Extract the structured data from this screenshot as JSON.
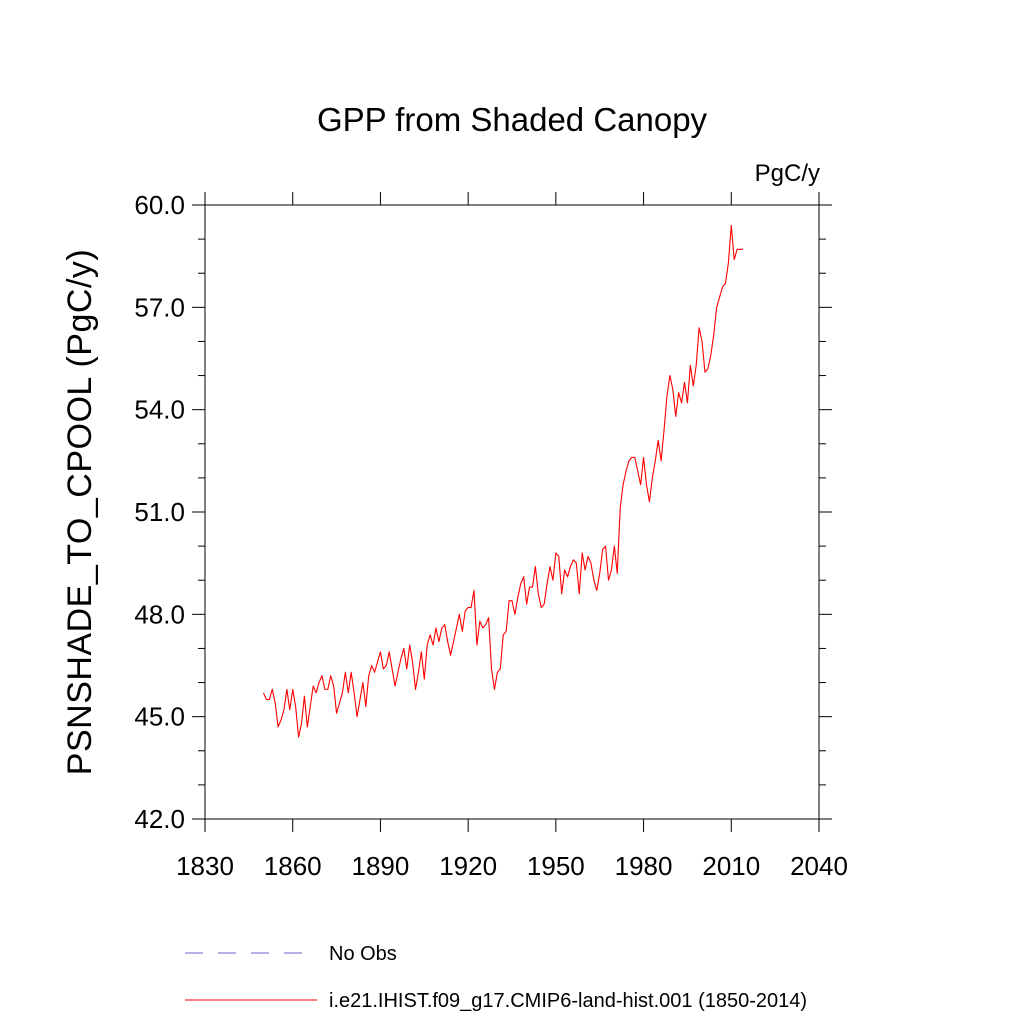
{
  "chart_data": {
    "type": "line",
    "title": "GPP from Shaded Canopy",
    "units_label": "PgC/y",
    "ylabel": "PSNSHADE_TO_CPOOL  (PgC/y)",
    "xlabel": "",
    "xlim": [
      1830,
      2040
    ],
    "ylim": [
      42.0,
      60.0
    ],
    "x_ticks": [
      1830,
      1860,
      1890,
      1920,
      1950,
      1980,
      2010,
      2040
    ],
    "x_tick_labels": [
      "1830",
      "1860",
      "1890",
      "1920",
      "1950",
      "1980",
      "2010",
      "2040"
    ],
    "y_ticks": [
      42,
      45,
      48,
      51,
      54,
      57,
      60
    ],
    "y_tick_labels": [
      "42.0",
      "45.0",
      "48.0",
      "51.0",
      "54.0",
      "57.0",
      "60.0"
    ],
    "grid": false,
    "legend_position": "bottom",
    "series": [
      {
        "name": "No Obs",
        "color": "#6666cc",
        "dash": "dashed",
        "x": [],
        "values": []
      },
      {
        "name": "i.e21.IHIST.f09_g17.CMIP6-land-hist.001 (1850-2014)",
        "color": "#ff0000",
        "dash": "solid",
        "x": [
          1850,
          1851,
          1852,
          1853,
          1854,
          1855,
          1856,
          1857,
          1858,
          1859,
          1860,
          1861,
          1862,
          1863,
          1864,
          1865,
          1866,
          1867,
          1868,
          1869,
          1870,
          1871,
          1872,
          1873,
          1874,
          1875,
          1876,
          1877,
          1878,
          1879,
          1880,
          1881,
          1882,
          1883,
          1884,
          1885,
          1886,
          1887,
          1888,
          1889,
          1890,
          1891,
          1892,
          1893,
          1894,
          1895,
          1896,
          1897,
          1898,
          1899,
          1900,
          1901,
          1902,
          1903,
          1904,
          1905,
          1906,
          1907,
          1908,
          1909,
          1910,
          1911,
          1912,
          1913,
          1914,
          1915,
          1916,
          1917,
          1918,
          1919,
          1920,
          1921,
          1922,
          1923,
          1924,
          1925,
          1926,
          1927,
          1928,
          1929,
          1930,
          1931,
          1932,
          1933,
          1934,
          1935,
          1936,
          1937,
          1938,
          1939,
          1940,
          1941,
          1942,
          1943,
          1944,
          1945,
          1946,
          1947,
          1948,
          1949,
          1950,
          1951,
          1952,
          1953,
          1954,
          1955,
          1956,
          1957,
          1958,
          1959,
          1960,
          1961,
          1962,
          1963,
          1964,
          1965,
          1966,
          1967,
          1968,
          1969,
          1970,
          1971,
          1972,
          1973,
          1974,
          1975,
          1976,
          1977,
          1978,
          1979,
          1980,
          1981,
          1982,
          1983,
          1984,
          1985,
          1986,
          1987,
          1988,
          1989,
          1990,
          1991,
          1992,
          1993,
          1994,
          1995,
          1996,
          1997,
          1998,
          1999,
          2000,
          2001,
          2002,
          2003,
          2004,
          2005,
          2006,
          2007,
          2008,
          2009,
          2010,
          2011,
          2012,
          2013,
          2014
        ],
        "values": [
          45.7,
          45.5,
          45.5,
          45.8,
          45.4,
          44.7,
          44.9,
          45.2,
          45.8,
          45.2,
          45.8,
          45.3,
          44.4,
          44.8,
          45.6,
          44.7,
          45.3,
          45.9,
          45.7,
          46.0,
          46.2,
          45.8,
          45.8,
          46.2,
          45.9,
          45.1,
          45.4,
          45.7,
          46.3,
          45.7,
          46.3,
          45.7,
          45.0,
          45.5,
          46.0,
          45.3,
          46.2,
          46.5,
          46.3,
          46.6,
          46.9,
          46.4,
          46.5,
          46.9,
          46.4,
          45.9,
          46.3,
          46.7,
          47.0,
          46.4,
          47.1,
          46.6,
          45.8,
          46.3,
          46.9,
          46.1,
          47.1,
          47.4,
          47.1,
          47.6,
          47.2,
          47.6,
          47.7,
          47.2,
          46.8,
          47.2,
          47.6,
          48.0,
          47.5,
          48.1,
          48.2,
          48.2,
          48.7,
          47.1,
          47.8,
          47.6,
          47.7,
          47.9,
          46.4,
          45.8,
          46.3,
          46.4,
          47.4,
          47.5,
          48.4,
          48.4,
          48.0,
          48.5,
          48.9,
          49.1,
          48.3,
          48.8,
          48.8,
          49.4,
          48.6,
          48.2,
          48.3,
          48.9,
          49.4,
          49.0,
          49.8,
          49.7,
          48.6,
          49.3,
          49.1,
          49.4,
          49.6,
          49.5,
          48.6,
          49.8,
          49.3,
          49.7,
          49.5,
          49.0,
          48.7,
          49.2,
          49.9,
          50.0,
          49.0,
          49.3,
          50.0,
          49.2,
          51.1,
          51.8,
          52.2,
          52.5,
          52.6,
          52.6,
          52.2,
          51.8,
          52.6,
          51.8,
          51.3,
          52.0,
          52.5,
          53.1,
          52.5,
          53.4,
          54.4,
          55.0,
          54.6,
          53.8,
          54.5,
          54.2,
          54.8,
          54.2,
          55.3,
          54.7,
          55.3,
          56.4,
          56.0,
          55.1,
          55.2,
          55.6,
          56.2,
          57.0,
          57.3,
          57.6,
          57.7,
          58.3,
          59.4,
          58.4,
          58.7,
          58.7,
          58.7
        ]
      }
    ]
  }
}
